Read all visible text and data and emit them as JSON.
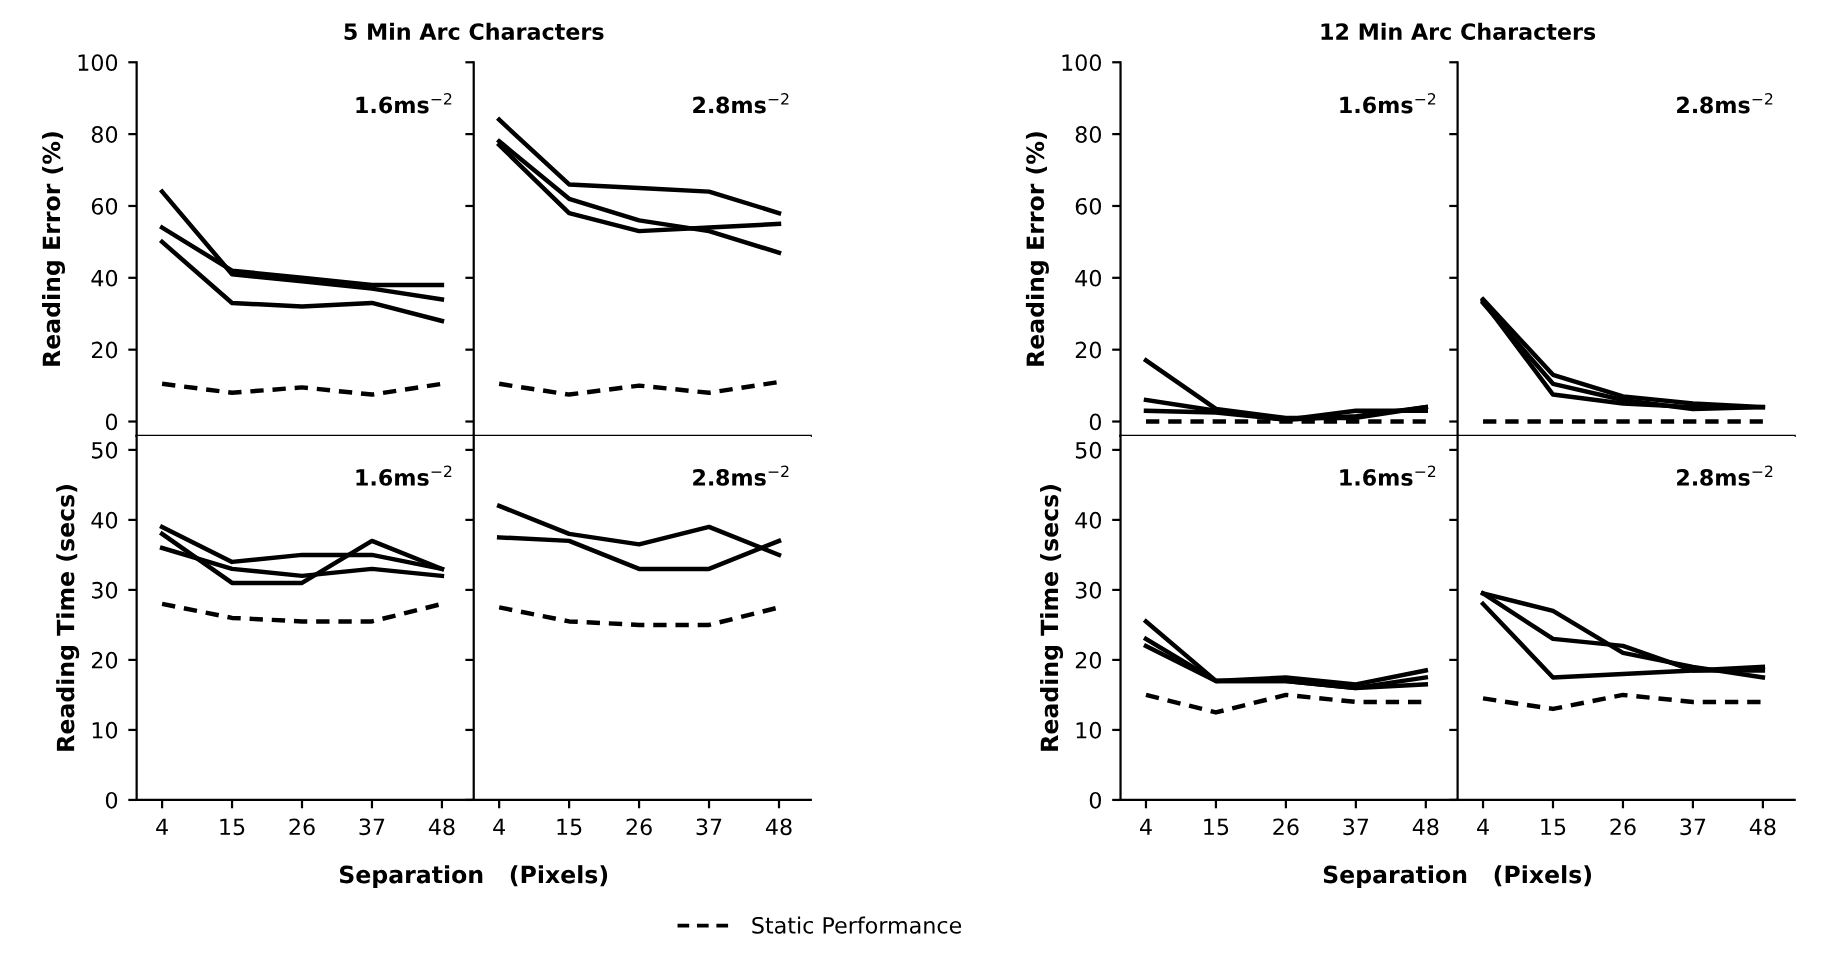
{
  "chart_data": [
    {
      "type": "line",
      "title": "5 Min Arc Characters",
      "ylabel": "Reading Error (%)",
      "x": [
        4,
        15,
        26,
        37,
        48
      ],
      "xlim": [
        0,
        53
      ],
      "xticks": [
        4,
        15,
        26,
        37,
        48
      ],
      "ylim": [
        -4,
        100
      ],
      "yticks": [
        0,
        20,
        40,
        60,
        80,
        100
      ],
      "tick_labels": "y",
      "grid": false,
      "legend": "bottom",
      "marker": "none",
      "annotations": [
        "1.6ms$^{−2}$"
      ],
      "series": [
        {
          "color": "#000000",
          "values": [
            64,
            41,
            39,
            37,
            34
          ],
          "line_style": "solid"
        },
        {
          "color": "#000000",
          "values": [
            54,
            42,
            40,
            38,
            38
          ],
          "line_style": "solid"
        },
        {
          "color": "#000000",
          "values": [
            50,
            33,
            32,
            33,
            28
          ],
          "line_style": "solid"
        },
        {
          "name": "Static Performance",
          "color": "#000000",
          "values": [
            10.5,
            8,
            9.5,
            7.5,
            10.5
          ],
          "line_style": "dashed"
        }
      ]
    },
    {
      "type": "line",
      "x": [
        4,
        15,
        26,
        37,
        48
      ],
      "xlim": [
        0,
        53
      ],
      "xticks": [
        4,
        15,
        26,
        37,
        48
      ],
      "ylim": [
        -4,
        100
      ],
      "yticks": [
        0,
        20,
        40,
        60,
        80,
        100
      ],
      "tick_labels": false,
      "grid": false,
      "marker": "none",
      "annotations": [
        "2.8ms$^{−2}$"
      ],
      "series": [
        {
          "color": "#000000",
          "values": [
            84,
            66,
            65,
            64,
            58
          ],
          "line_style": "solid"
        },
        {
          "color": "#000000",
          "values": [
            78,
            62,
            56,
            53,
            47
          ],
          "line_style": "solid"
        },
        {
          "color": "#000000",
          "values": [
            77,
            58,
            53,
            54,
            55
          ],
          "line_style": "solid"
        },
        {
          "color": "#000000",
          "values": [
            10.5,
            7.5,
            10,
            8,
            11
          ],
          "line_style": "dashed"
        }
      ]
    },
    {
      "type": "line",
      "ylabel": "Reading Time (secs)",
      "xlabel": "Separation   (Pixels)",
      "x": [
        4,
        15,
        26,
        37,
        48
      ],
      "xlim": [
        0,
        53
      ],
      "xticks": [
        4,
        15,
        26,
        37,
        48
      ],
      "ylim": [
        0,
        52
      ],
      "yticks": [
        0,
        10,
        20,
        30,
        40,
        50
      ],
      "grid": false,
      "marker": "none",
      "annotations": [
        "1.6ms$^{−2}$"
      ],
      "series": [
        {
          "color": "#000000",
          "values": [
            39,
            34,
            35,
            35,
            33
          ],
          "line_style": "solid"
        },
        {
          "color": "#000000",
          "values": [
            38,
            31,
            31,
            37,
            33
          ],
          "line_style": "solid"
        },
        {
          "color": "#000000",
          "values": [
            36,
            33,
            32,
            33,
            32
          ],
          "line_style": "solid"
        },
        {
          "color": "#000000",
          "values": [
            28,
            26,
            25.5,
            25.5,
            28
          ],
          "line_style": "dashed"
        }
      ]
    },
    {
      "type": "line",
      "x": [
        4,
        15,
        26,
        37,
        48
      ],
      "xlim": [
        0,
        53
      ],
      "xticks": [
        4,
        15,
        26,
        37,
        48
      ],
      "ylim": [
        0,
        52
      ],
      "yticks": [
        0,
        10,
        20,
        30,
        40,
        50
      ],
      "tick_labels": "x",
      "grid": false,
      "marker": "none",
      "annotations": [
        "2.8ms$^{−2}$"
      ],
      "series": [
        {
          "color": "#000000",
          "values": [
            42,
            38,
            36.5,
            39,
            35
          ],
          "line_style": "solid"
        },
        {
          "color": "#000000",
          "values": [
            37.5,
            37,
            33,
            33,
            37
          ],
          "line_style": "solid"
        },
        {
          "color": "#000000",
          "values": [
            27.5,
            25.5,
            25,
            25,
            27.5
          ],
          "line_style": "dashed"
        }
      ]
    },
    {
      "type": "line",
      "title": "12 Min Arc Characters",
      "ylabel": "Reading Error (%)",
      "x": [
        4,
        15,
        26,
        37,
        48
      ],
      "xlim": [
        0,
        53
      ],
      "xticks": [
        4,
        15,
        26,
        37,
        48
      ],
      "ylim": [
        -4,
        100
      ],
      "yticks": [
        0,
        20,
        40,
        60,
        80,
        100
      ],
      "tick_labels": "y",
      "grid": false,
      "marker": "none",
      "annotations": [
        "1.6ms$^{−2}$"
      ],
      "series": [
        {
          "color": "#000000",
          "values": [
            17,
            3.5,
            1,
            1,
            4
          ],
          "line_style": "solid"
        },
        {
          "color": "#000000",
          "values": [
            6,
            3,
            0.5,
            3,
            3
          ],
          "line_style": "solid"
        },
        {
          "color": "#000000",
          "values": [
            3,
            2.5,
            0.5,
            1.5,
            4
          ],
          "line_style": "solid"
        },
        {
          "color": "#000000",
          "values": [
            0,
            0,
            0,
            0,
            0
          ],
          "line_style": "dashed"
        }
      ]
    },
    {
      "type": "line",
      "x": [
        4,
        15,
        26,
        37,
        48
      ],
      "xlim": [
        0,
        53
      ],
      "xticks": [
        4,
        15,
        26,
        37,
        48
      ],
      "ylim": [
        -4,
        100
      ],
      "yticks": [
        0,
        20,
        40,
        60,
        80,
        100
      ],
      "tick_labels": false,
      "grid": false,
      "marker": "none",
      "annotations": [
        "2.8ms$^{−2}$"
      ],
      "series": [
        {
          "color": "#000000",
          "values": [
            34,
            13,
            7,
            5,
            4
          ],
          "line_style": "solid"
        },
        {
          "color": "#000000",
          "values": [
            33,
            10.5,
            6,
            3.5,
            4
          ],
          "line_style": "solid"
        },
        {
          "color": "#000000",
          "values": [
            33.5,
            7.5,
            5,
            4,
            4
          ],
          "line_style": "solid"
        },
        {
          "color": "#000000",
          "values": [
            0,
            0,
            0,
            0,
            0
          ],
          "line_style": "dashed"
        }
      ]
    },
    {
      "type": "line",
      "ylabel": "Reading Time (secs)",
      "xlabel": "Separation   (Pixels)",
      "x": [
        4,
        15,
        26,
        37,
        48
      ],
      "xlim": [
        0,
        53
      ],
      "xticks": [
        4,
        15,
        26,
        37,
        48
      ],
      "ylim": [
        0,
        52
      ],
      "yticks": [
        0,
        10,
        20,
        30,
        40,
        50
      ],
      "grid": false,
      "marker": "none",
      "annotations": [
        "1.6ms$^{−2}$"
      ],
      "series": [
        {
          "color": "#000000",
          "values": [
            25.5,
            17,
            17.5,
            16.5,
            18.5
          ],
          "line_style": "solid"
        },
        {
          "color": "#000000",
          "values": [
            23,
            17,
            17,
            16,
            17.5
          ],
          "line_style": "solid"
        },
        {
          "color": "#000000",
          "values": [
            22,
            17,
            17,
            16,
            16.5
          ],
          "line_style": "solid"
        },
        {
          "color": "#000000",
          "values": [
            15,
            12.5,
            15,
            14,
            14
          ],
          "line_style": "dashed"
        }
      ]
    },
    {
      "type": "line",
      "x": [
        4,
        15,
        26,
        37,
        48
      ],
      "xlim": [
        0,
        53
      ],
      "xticks": [
        4,
        15,
        26,
        37,
        48
      ],
      "ylim": [
        0,
        52
      ],
      "yticks": [
        0,
        10,
        20,
        30,
        40,
        50
      ],
      "tick_labels": "x",
      "grid": false,
      "marker": "none",
      "annotations": [
        "2.8ms$^{−2}$"
      ],
      "series": [
        {
          "color": "#000000",
          "values": [
            29.5,
            27,
            21,
            19,
            17.5
          ],
          "line_style": "solid"
        },
        {
          "color": "#000000",
          "values": [
            29.5,
            23,
            22,
            18.5,
            18.5
          ],
          "line_style": "solid"
        },
        {
          "color": "#000000",
          "values": [
            28,
            17.5,
            18,
            18.5,
            19
          ],
          "line_style": "solid"
        },
        {
          "color": "#000000",
          "values": [
            14.5,
            13,
            15,
            14,
            14
          ],
          "line_style": "dashed"
        }
      ]
    }
  ]
}
